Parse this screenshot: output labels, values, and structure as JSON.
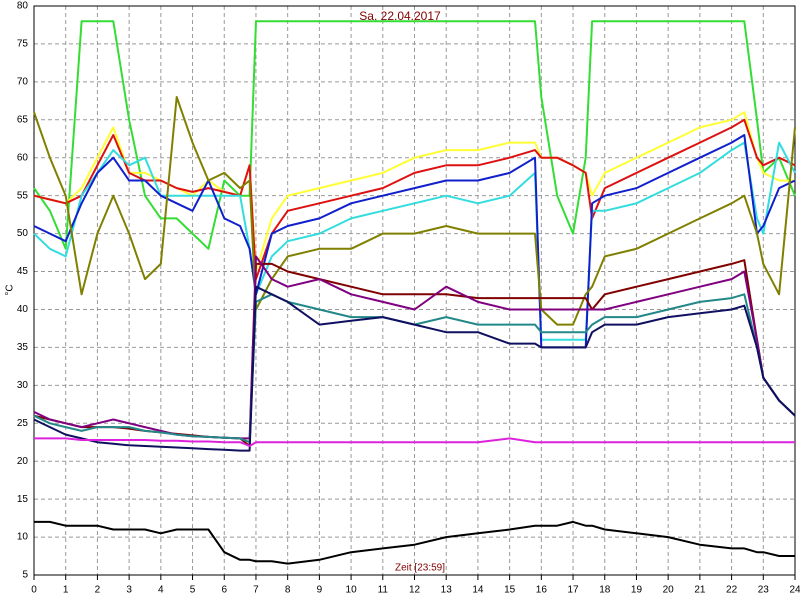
{
  "chart_data": {
    "type": "line",
    "title": "Sa, 22.04.2017",
    "x_label": "Zeit [23:59]",
    "y_label": "°C",
    "x": [
      0,
      0.5,
      1,
      1.5,
      2,
      2.5,
      3,
      3.5,
      4,
      4.5,
      5,
      5.5,
      6,
      6.5,
      6.8,
      7,
      7.5,
      8,
      9,
      10,
      11,
      12,
      13,
      14,
      15,
      15.8,
      16,
      16.5,
      17,
      17.4,
      17.6,
      18,
      19,
      20,
      21,
      22,
      22.4,
      22.8,
      23,
      23.5,
      24
    ],
    "xlim": [
      0,
      24
    ],
    "xticks": [
      0,
      1,
      2,
      3,
      4,
      5,
      6,
      7,
      8,
      9,
      10,
      11,
      12,
      13,
      14,
      15,
      16,
      17,
      18,
      19,
      20,
      21,
      22,
      23,
      24
    ],
    "ylim": [
      5,
      80
    ],
    "yticks": [
      5,
      10,
      15,
      20,
      25,
      30,
      35,
      40,
      45,
      50,
      55,
      60,
      65,
      70,
      75,
      80
    ],
    "grid": true,
    "series": [
      {
        "color": "#33dd33",
        "values": [
          56,
          53,
          48,
          78,
          78,
          78,
          65,
          55,
          52,
          52,
          50,
          48,
          57,
          55,
          55,
          78,
          78,
          78,
          78,
          78,
          78,
          78,
          78,
          78,
          78,
          78,
          68,
          55,
          50,
          60,
          78,
          78,
          78,
          78,
          78,
          78,
          78,
          65,
          58,
          60,
          55
        ]
      },
      {
        "color": "#ffff33",
        "values": [
          55,
          54.5,
          54,
          56,
          60,
          64,
          58,
          58,
          57,
          56,
          55,
          57,
          55.5,
          55,
          59,
          45,
          52,
          55,
          56,
          57,
          58,
          60,
          61,
          61,
          62,
          62,
          60,
          60,
          59,
          58,
          55,
          58,
          60,
          62,
          64,
          65,
          66,
          60,
          58,
          57,
          57
        ]
      },
      {
        "color": "#dd1111",
        "values": [
          55,
          54.5,
          54,
          55,
          59,
          63,
          58,
          57,
          57,
          56,
          55.5,
          56,
          55.5,
          55,
          59,
          44,
          50,
          53,
          54,
          55,
          56,
          58,
          59,
          59,
          60,
          61,
          60,
          60,
          59,
          58,
          52,
          56,
          58,
          60,
          62,
          64,
          65,
          60,
          59,
          60,
          59
        ]
      },
      {
        "color": "#33dddd",
        "values": [
          50,
          48,
          47,
          55,
          58,
          61,
          59,
          60,
          55,
          55,
          55,
          55,
          55,
          55,
          48,
          42,
          47,
          49,
          50,
          52,
          53,
          54,
          55,
          54,
          55,
          58,
          36,
          36,
          36,
          36,
          53,
          53,
          54,
          56,
          58,
          61,
          62,
          52,
          50,
          62,
          58
        ]
      },
      {
        "color": "#1020cc",
        "values": [
          51,
          50,
          49,
          54,
          58,
          60,
          57,
          57,
          55,
          54,
          53,
          57,
          52,
          51,
          48,
          42,
          50,
          51,
          52,
          54,
          55,
          56,
          57,
          57,
          58,
          60,
          35,
          35,
          35,
          35,
          54,
          55,
          56,
          58,
          60,
          62,
          63,
          50,
          51,
          56,
          57
        ]
      },
      {
        "color": "#808000",
        "values": [
          66,
          60,
          55,
          42,
          50,
          55,
          50,
          44,
          46,
          68,
          62,
          57,
          58,
          56,
          57,
          40,
          44,
          47,
          48,
          48,
          50,
          50,
          51,
          50,
          50,
          50,
          40,
          38,
          38,
          42,
          43,
          47,
          48,
          50,
          52,
          54,
          55,
          50,
          46,
          42,
          64
        ]
      },
      {
        "color": "#800000",
        "values": [
          26,
          25.5,
          25,
          24.5,
          24.5,
          24.5,
          24.3,
          24,
          23.8,
          23.6,
          23.4,
          23.2,
          23.1,
          23,
          22,
          46,
          46,
          45,
          44,
          43,
          42,
          42,
          42,
          41.5,
          41.5,
          41.5,
          41.5,
          41.5,
          41.5,
          41.5,
          40,
          42,
          43,
          44,
          45,
          46,
          46.5,
          36,
          31,
          28,
          26
        ]
      },
      {
        "color": "#800080",
        "values": [
          26.5,
          25.5,
          25,
          24.5,
          25,
          25.5,
          25,
          24.5,
          24,
          23.5,
          23.3,
          23.2,
          23.1,
          23,
          23,
          47,
          44,
          43,
          44,
          42,
          41,
          40,
          43,
          41,
          40,
          40,
          40,
          40,
          40,
          40,
          40,
          40,
          41,
          42,
          43,
          44,
          45,
          36,
          31,
          28,
          26
        ]
      },
      {
        "color": "#228888",
        "values": [
          26,
          25,
          24.5,
          24,
          24.5,
          24.5,
          24.5,
          24,
          23.8,
          23.5,
          23.3,
          23.2,
          23.1,
          23,
          22.5,
          41,
          42,
          41,
          40,
          39,
          39,
          38,
          39,
          38,
          38,
          38,
          37,
          37,
          37,
          37,
          38,
          39,
          39,
          40,
          41,
          41.5,
          42,
          35,
          31,
          28,
          26
        ]
      },
      {
        "color": "#101060",
        "values": [
          25.5,
          24.5,
          23.5,
          23,
          22.5,
          22.3,
          22.1,
          22,
          21.9,
          21.8,
          21.7,
          21.6,
          21.5,
          21.4,
          21.4,
          43,
          42,
          41,
          38,
          38.5,
          39,
          38,
          37,
          37,
          35.5,
          35.5,
          35,
          35,
          35,
          35,
          37,
          38,
          38,
          39,
          39.5,
          40,
          40.5,
          35,
          31,
          28,
          26
        ]
      },
      {
        "color": "#dd22dd",
        "values": [
          23,
          23,
          23,
          22.8,
          22.8,
          22.8,
          22.8,
          22.8,
          22.7,
          22.7,
          22.6,
          22.6,
          22.5,
          22.5,
          22,
          22.5,
          22.5,
          22.5,
          22.5,
          22.5,
          22.5,
          22.5,
          22.5,
          22.5,
          23,
          22.5,
          22.5,
          22.5,
          22.5,
          22.5,
          22.5,
          22.5,
          22.5,
          22.5,
          22.5,
          22.5,
          22.5,
          22.5,
          22.5,
          22.5,
          22.5
        ]
      },
      {
        "color": "#000000",
        "values": [
          12,
          12,
          11.5,
          11.5,
          11.5,
          11,
          11,
          11,
          10.5,
          11,
          11,
          11,
          8,
          7,
          7,
          6.8,
          6.8,
          6.5,
          7,
          8,
          8.5,
          9,
          10,
          10.5,
          11,
          11.5,
          11.5,
          11.5,
          12,
          11.5,
          11.5,
          11,
          10.5,
          10,
          9,
          8.5,
          8.5,
          8,
          8,
          7.5,
          7.5
        ]
      }
    ]
  }
}
